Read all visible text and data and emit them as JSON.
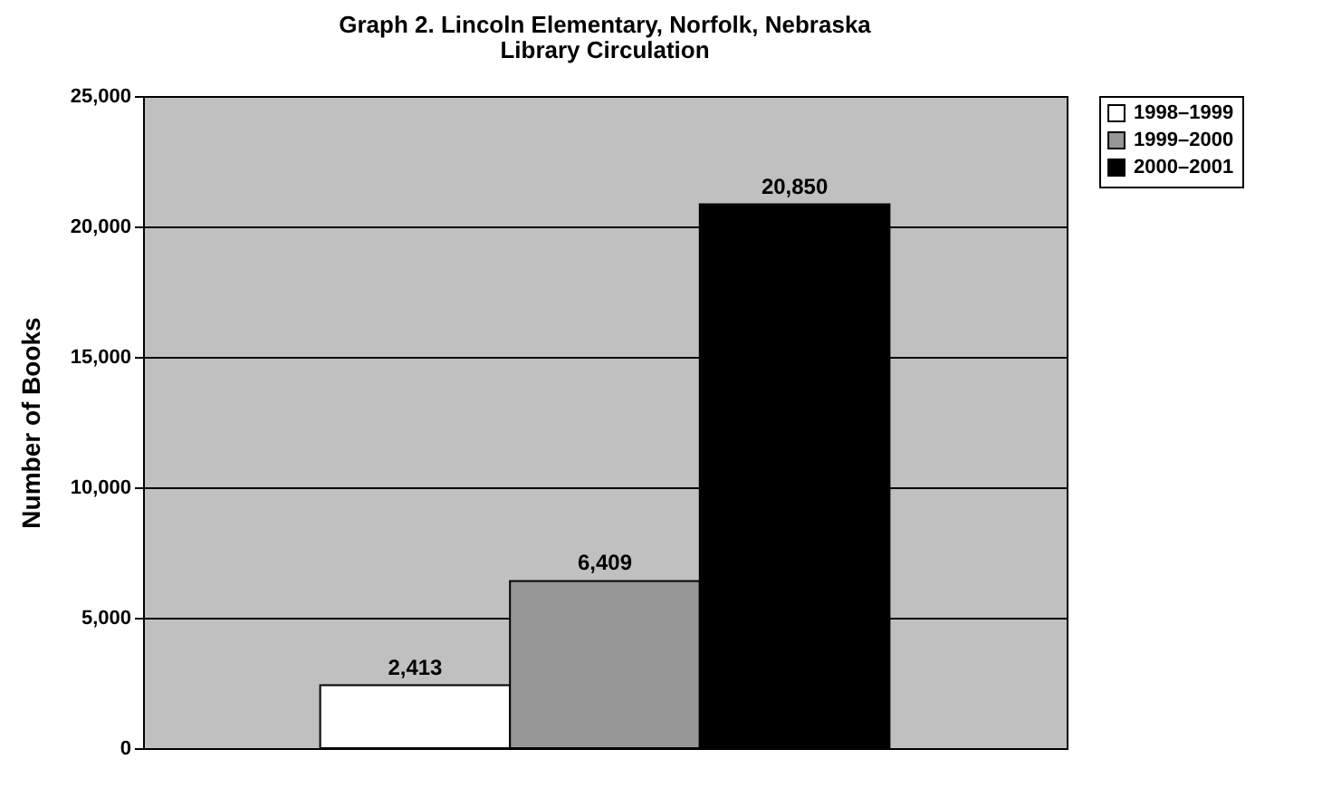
{
  "chart_data": {
    "type": "bar",
    "title": "Graph 2. Lincoln Elementary, Norfolk, Nebraska",
    "subtitle": "Library Circulation",
    "ylabel": "Number of Books",
    "categories": [
      null
    ],
    "series": [
      {
        "name": "1998–1999",
        "color": "#ffffff",
        "values": [
          2413
        ],
        "value_labels": [
          "2,413"
        ]
      },
      {
        "name": "1999–2000",
        "color": "#969696",
        "values": [
          6409
        ],
        "value_labels": [
          "6,409"
        ]
      },
      {
        "name": "2000–2001",
        "color": "#000000",
        "values": [
          20850
        ],
        "value_labels": [
          "20,850"
        ]
      }
    ],
    "ylim": [
      0,
      25000
    ],
    "yticks": [
      0,
      {
        "value": 5000,
        "label": "5,000"
      },
      {
        "value": 10000,
        "label": "10,000"
      },
      {
        "value": 15000,
        "label": "15,000"
      },
      {
        "value": 20000,
        "label": "20,000"
      },
      {
        "value": 25000,
        "label": "25,000"
      }
    ],
    "grid": "y",
    "legend": "right"
  }
}
